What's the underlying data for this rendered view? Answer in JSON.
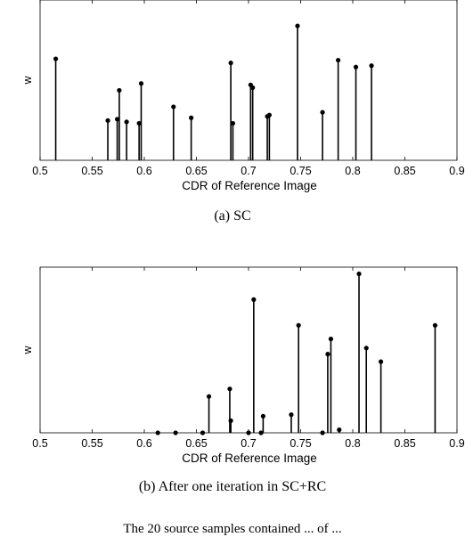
{
  "chart_data": [
    {
      "type": "stem",
      "caption": "(a) SC",
      "xlabel": "CDR of Reference Image",
      "ylabel": "w",
      "xlim": [
        0.5,
        0.9
      ],
      "ylim": [
        0,
        1
      ],
      "xticks": [
        "0.5",
        "0.55",
        "0.6",
        "0.65",
        "0.7",
        "0.75",
        "0.8",
        "0.85",
        "0.9"
      ],
      "grid": false,
      "points": [
        {
          "x": 0.515,
          "y": 0.74
        },
        {
          "x": 0.565,
          "y": 0.29
        },
        {
          "x": 0.574,
          "y": 0.3
        },
        {
          "x": 0.576,
          "y": 0.51
        },
        {
          "x": 0.583,
          "y": 0.28
        },
        {
          "x": 0.595,
          "y": 0.27
        },
        {
          "x": 0.597,
          "y": 0.56
        },
        {
          "x": 0.628,
          "y": 0.39
        },
        {
          "x": 0.645,
          "y": 0.31
        },
        {
          "x": 0.683,
          "y": 0.71
        },
        {
          "x": 0.685,
          "y": 0.27
        },
        {
          "x": 0.702,
          "y": 0.55
        },
        {
          "x": 0.704,
          "y": 0.53
        },
        {
          "x": 0.718,
          "y": 0.32
        },
        {
          "x": 0.72,
          "y": 0.33
        },
        {
          "x": 0.747,
          "y": 0.98
        },
        {
          "x": 0.771,
          "y": 0.35
        },
        {
          "x": 0.786,
          "y": 0.73
        },
        {
          "x": 0.803,
          "y": 0.68
        },
        {
          "x": 0.818,
          "y": 0.69
        }
      ]
    },
    {
      "type": "stem",
      "caption": "(b) After one iteration in SC+RC",
      "xlabel": "CDR of Reference Image",
      "ylabel": "w",
      "xlim": [
        0.5,
        0.9
      ],
      "ylim": [
        0,
        1
      ],
      "xticks": [
        "0.5",
        "0.55",
        "0.6",
        "0.65",
        "0.7",
        "0.75",
        "0.8",
        "0.85",
        "0.9"
      ],
      "grid": false,
      "points": [
        {
          "x": 0.613,
          "y": 0.0
        },
        {
          "x": 0.63,
          "y": 0.0
        },
        {
          "x": 0.656,
          "y": 0.0
        },
        {
          "x": 0.662,
          "y": 0.24
        },
        {
          "x": 0.682,
          "y": 0.29
        },
        {
          "x": 0.683,
          "y": 0.08
        },
        {
          "x": 0.7,
          "y": 0.0
        },
        {
          "x": 0.705,
          "y": 0.88
        },
        {
          "x": 0.712,
          "y": 0.0
        },
        {
          "x": 0.714,
          "y": 0.11
        },
        {
          "x": 0.741,
          "y": 0.12
        },
        {
          "x": 0.748,
          "y": 0.71
        },
        {
          "x": 0.771,
          "y": 0.0
        },
        {
          "x": 0.776,
          "y": 0.52
        },
        {
          "x": 0.779,
          "y": 0.62
        },
        {
          "x": 0.787,
          "y": 0.02
        },
        {
          "x": 0.806,
          "y": 1.05
        },
        {
          "x": 0.813,
          "y": 0.56
        },
        {
          "x": 0.827,
          "y": 0.47
        },
        {
          "x": 0.879,
          "y": 0.71
        }
      ]
    }
  ],
  "bottom_text": "The 20 source samples contained ... of ..."
}
